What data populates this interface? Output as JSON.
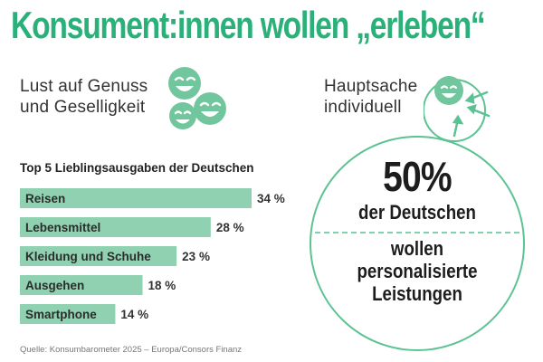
{
  "title": "Konsument:innen wollen „erleben“",
  "left_subtitle": [
    "Lust auf Genuss",
    "und Geselligkeit"
  ],
  "right_subtitle": [
    "Hauptsache",
    "individuell"
  ],
  "icons_left": "three-laughing-faces-icon",
  "icon_right": "smiling-face-with-arrows-icon",
  "colors": {
    "accent": "#2bb07a",
    "bar": "#8fd1b1",
    "icon": "#72c69e",
    "circle_border": "#5cc293"
  },
  "chart_data": {
    "type": "bar",
    "title": "Top 5 Lieblingsausgaben der Deutschen",
    "categories": [
      "Reisen",
      "Lebensmittel",
      "Kleidung und Schuhe",
      "Ausgehen",
      "Smartphone"
    ],
    "values": [
      34,
      28,
      23,
      18,
      14
    ],
    "value_labels": [
      "34 %",
      "28 %",
      "23 %",
      "18 %",
      "14 %"
    ],
    "unit": "%",
    "orientation": "horizontal",
    "xlim": [
      0,
      34
    ]
  },
  "highlight": {
    "value": "50%",
    "line1": "der Deutschen",
    "line2": [
      "wollen",
      "personalisierte",
      "Leistungen"
    ]
  },
  "source": "Quelle: Konsumbarometer 2025 – Europa/Consors Finanz"
}
